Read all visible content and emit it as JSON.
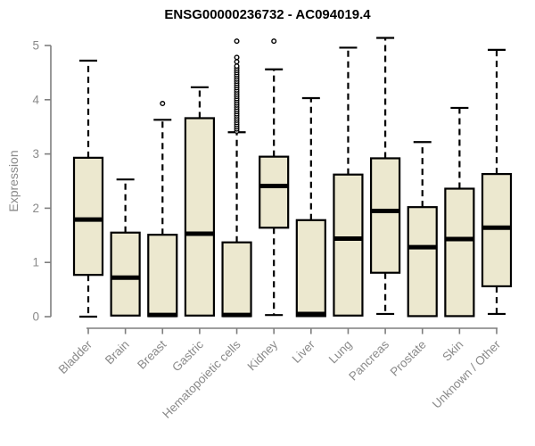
{
  "chart_data": {
    "type": "boxplot",
    "title": "ENSG00000236732 - AC094019.4",
    "ylabel": "Expression",
    "xlabel": "",
    "ylim": [
      0,
      5
    ],
    "yticks": [
      0,
      1,
      2,
      3,
      4,
      5
    ],
    "grid": false,
    "legend": "none",
    "categories": [
      "Bladder",
      "Brain",
      "Breast",
      "Gastric",
      "Hematopoietic cells",
      "Kidney",
      "Liver",
      "Lung",
      "Pancreas",
      "Prostate",
      "Skin",
      "Unknown / Other"
    ],
    "series": [
      {
        "name": "Bladder",
        "whisker_low": 0,
        "q1": 0.77,
        "median": 1.79,
        "q3": 2.93,
        "whisker_high": 4.72,
        "outliers": []
      },
      {
        "name": "Brain",
        "whisker_low": 0,
        "q1": 0.02,
        "median": 0.72,
        "q3": 1.55,
        "whisker_high": 2.53,
        "outliers": []
      },
      {
        "name": "Breast",
        "whisker_low": 0,
        "q1": 0.01,
        "median": 0.03,
        "q3": 1.51,
        "whisker_high": 3.63,
        "outliers": [
          3.93
        ]
      },
      {
        "name": "Gastric",
        "whisker_low": 0,
        "q1": 0.02,
        "median": 1.53,
        "q3": 3.66,
        "whisker_high": 4.23,
        "outliers": []
      },
      {
        "name": "Hematopoietic cells",
        "whisker_low": 0,
        "q1": 0.01,
        "median": 0.03,
        "q3": 1.37,
        "whisker_high": 3.4,
        "outliers": [
          3.42,
          3.46,
          3.5,
          3.54,
          3.58,
          3.62,
          3.66,
          3.7,
          3.74,
          3.78,
          3.82,
          3.86,
          3.9,
          3.94,
          3.98,
          4.02,
          4.06,
          4.1,
          4.14,
          4.18,
          4.22,
          4.26,
          4.3,
          4.34,
          4.38,
          4.42,
          4.46,
          4.5,
          4.54,
          4.58,
          4.62,
          4.7,
          4.78,
          5.08
        ]
      },
      {
        "name": "Kidney",
        "whisker_low": 0.03,
        "q1": 1.64,
        "median": 2.41,
        "q3": 2.95,
        "whisker_high": 4.56,
        "outliers": [
          5.08
        ]
      },
      {
        "name": "Liver",
        "whisker_low": 0,
        "q1": 0.01,
        "median": 0.05,
        "q3": 1.78,
        "whisker_high": 4.03,
        "outliers": []
      },
      {
        "name": "Lung",
        "whisker_low": 0,
        "q1": 0.02,
        "median": 1.44,
        "q3": 2.62,
        "whisker_high": 4.96,
        "outliers": []
      },
      {
        "name": "Pancreas",
        "whisker_low": 0.05,
        "q1": 0.81,
        "median": 1.95,
        "q3": 2.92,
        "whisker_high": 5.14,
        "outliers": []
      },
      {
        "name": "Prostate",
        "whisker_low": 0,
        "q1": 0.01,
        "median": 1.28,
        "q3": 2.02,
        "whisker_high": 3.22,
        "outliers": []
      },
      {
        "name": "Skin",
        "whisker_low": 0,
        "q1": 0.01,
        "median": 1.43,
        "q3": 2.36,
        "whisker_high": 3.85,
        "outliers": []
      },
      {
        "name": "Unknown / Other",
        "whisker_low": 0.05,
        "q1": 0.56,
        "median": 1.64,
        "q3": 2.63,
        "whisker_high": 4.92,
        "outliers": []
      }
    ],
    "colors": {
      "box_fill": "#ECE8CF",
      "box_stroke": "#000000",
      "median": "#000000",
      "whisker": "#000000",
      "outlier_stroke": "#000000",
      "outlier_fill": "#FFFFFF",
      "axis": "#7E7E7E",
      "tick_label": "#8A8A8A",
      "title": "#000000",
      "background": "#FFFFFF"
    }
  }
}
